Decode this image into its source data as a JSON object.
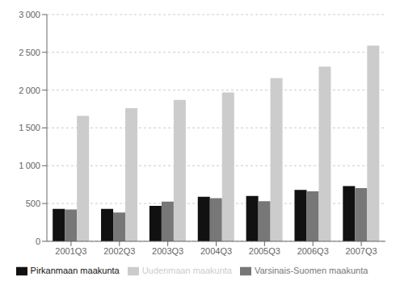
{
  "chart_data": {
    "type": "bar",
    "categories": [
      "2001Q3",
      "2002Q3",
      "2003Q3",
      "2004Q3",
      "2005Q3",
      "2006Q3",
      "2007Q3"
    ],
    "series": [
      {
        "name": "Pirkanmaan maakunta",
        "color": "#111111",
        "values": [
          430,
          430,
          470,
          590,
          600,
          680,
          730
        ]
      },
      {
        "name": "Varsinais-Suomen maakunta",
        "color": "#777777",
        "values": [
          420,
          380,
          525,
          570,
          530,
          660,
          705
        ]
      },
      {
        "name": "Uudenmaan maakunta",
        "color": "#cccccc",
        "values": [
          1660,
          1760,
          1870,
          1970,
          2160,
          2310,
          2590
        ]
      }
    ],
    "ylim": [
      0,
      3000
    ],
    "yticks": [
      0,
      500,
      {
        "value": 1000,
        "label": "1 000"
      },
      {
        "value": 1500,
        "label": "1 500"
      },
      {
        "value": 2000,
        "label": "2 000"
      },
      {
        "value": 2500,
        "label": "2 500"
      },
      {
        "value": 3000,
        "label": "3 000"
      }
    ],
    "grid": true,
    "legend": "bottom"
  }
}
